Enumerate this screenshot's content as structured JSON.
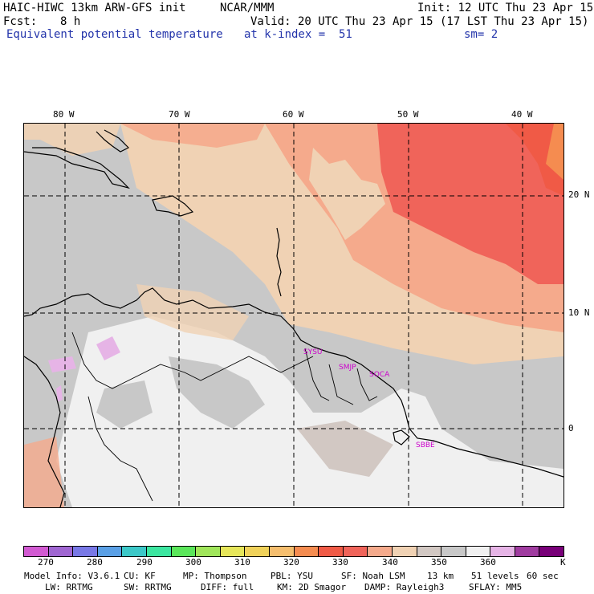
{
  "header": {
    "model_title": "HAIC-HIWC 13km ARW-GFS init",
    "org": "NCAR/MMM",
    "init": "Init: 12 UTC Thu 23 Apr 15",
    "fcst_label": "Fcst:",
    "fcst_value": "8 h",
    "valid": "Valid: 20 UTC Thu 23 Apr 15 (17 LST Thu 23 Apr 15)",
    "field_name": "Equivalent potential temperature",
    "level": "at k-index =  51",
    "smoothing": "sm= 2"
  },
  "map": {
    "lon_labels": [
      "80 W",
      "70 W",
      "60 W",
      "50 W",
      "40 W"
    ],
    "lat_labels": [
      "20 N",
      "10 N",
      "0"
    ],
    "stations": [
      "SYSU",
      "SMJP",
      "SOCA",
      "SBBE"
    ]
  },
  "colorbar": {
    "colors": [
      "#d25ad2",
      "#a066d2",
      "#7878e6",
      "#5aa0e6",
      "#3cc8c8",
      "#3ce6a0",
      "#5ae65a",
      "#a0e65a",
      "#e6e65a",
      "#f0d25a",
      "#f5be6e",
      "#f58c50",
      "#f05a46",
      "#f0645a",
      "#f5aa8c",
      "#f0d2b4",
      "#d2c8c3",
      "#c8c8c8",
      "#f0f0f0",
      "#e6b4e6",
      "#a03ca0",
      "#780078"
    ],
    "tick_labels": [
      "270",
      "280",
      "290",
      "300",
      "310",
      "320",
      "330",
      "340",
      "350",
      "360",
      "K"
    ]
  },
  "footer": {
    "line1": {
      "model_info": "Model Info: V3.6.1",
      "cu": "CU: KF",
      "mp": "MP: Thompson",
      "pbl": "PBL: YSU",
      "sf": "SF: Noah LSM",
      "res": "13 km",
      "levels": "51 levels",
      "dt": "60 sec"
    },
    "line2": {
      "lw": "LW: RRTMG",
      "sw": "SW: RRTMG",
      "diff": "DIFF: full",
      "km": "KM: 2D Smagor",
      "damp": "DAMP: Rayleigh3",
      "sflay": "SFLAY: MM5"
    }
  }
}
